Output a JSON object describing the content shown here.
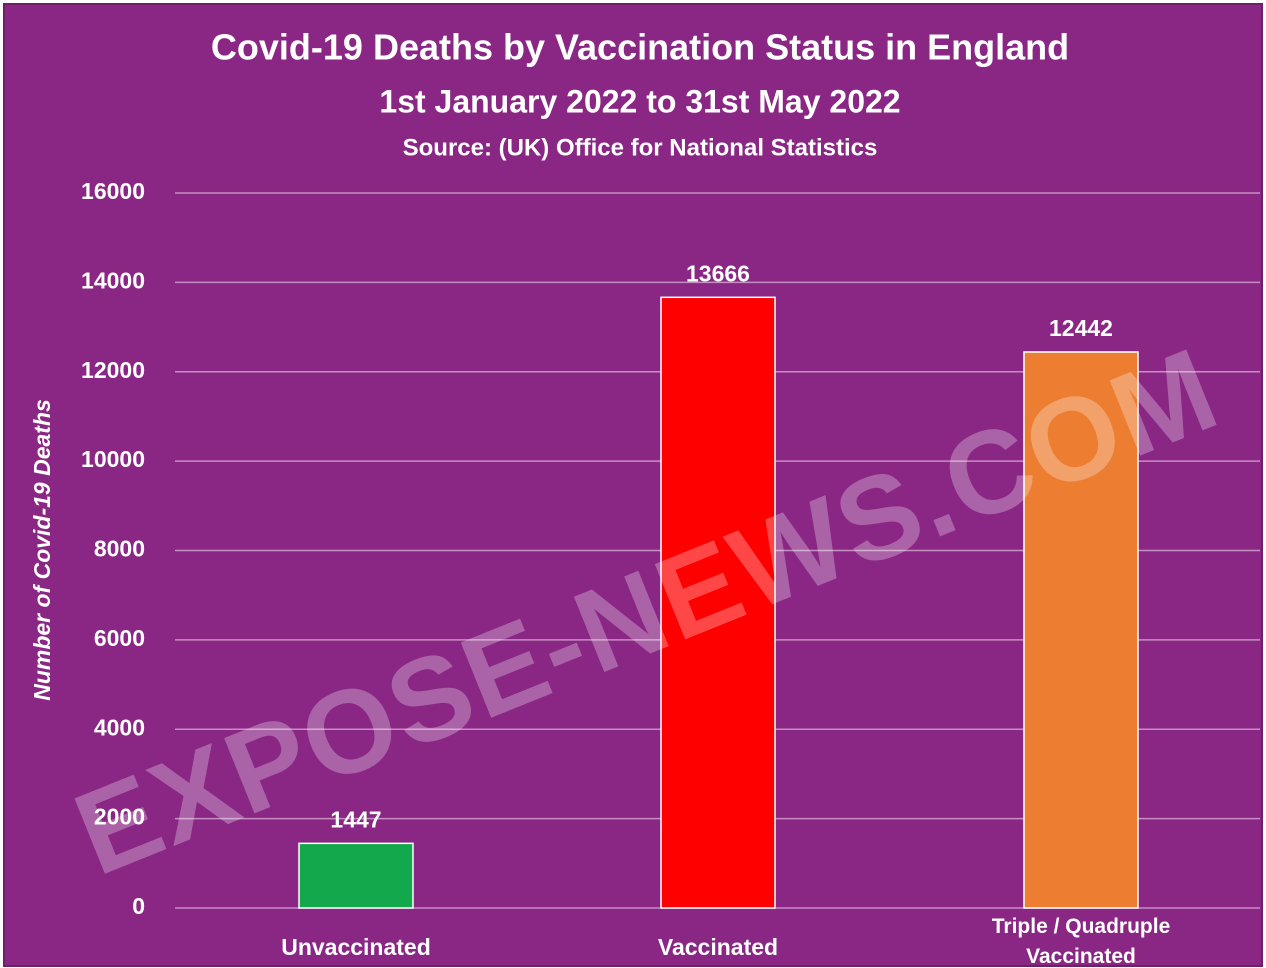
{
  "chart_data": {
    "type": "bar",
    "title": "Covid-19 Deaths by Vaccination Status in England",
    "subtitle": "1st January 2022 to 31st May 2022",
    "source": "Source:  (UK) Office for National Statistics",
    "y_label": "Number of Covid-19 Deaths",
    "watermark": "EXPOSE-NEWS.COM",
    "categories": [
      "Unvaccinated",
      "Vaccinated",
      "Triple / Quadruple Vaccinated"
    ],
    "values": [
      1447,
      13666,
      12442
    ],
    "colors": [
      "#12a84b",
      "#ff0000",
      "#ed7d31"
    ],
    "ylim": [
      0,
      16000
    ],
    "yticks": [
      0,
      2000,
      4000,
      6000,
      8000,
      10000,
      12000,
      14000,
      16000
    ],
    "grid": true
  }
}
